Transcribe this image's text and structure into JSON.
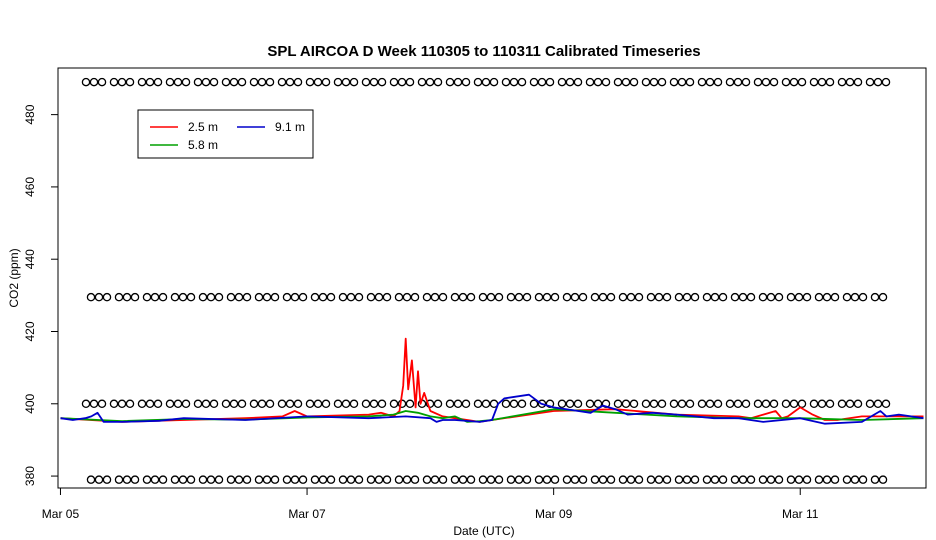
{
  "chart_data": {
    "type": "line",
    "title": "SPL AIRCOA D  Week 110305 to 110311  Calibrated Timeseries",
    "xlabel": "Date (UTC)",
    "ylabel": "CO2 (ppm)",
    "x_ticks": [
      {
        "x": 0,
        "label": "Mar 05"
      },
      {
        "x": 2,
        "label": "Mar 07"
      },
      {
        "x": 4,
        "label": "Mar 09"
      },
      {
        "x": 6,
        "label": "Mar 11"
      }
    ],
    "y_ticks": [
      380,
      400,
      420,
      440,
      460,
      480
    ],
    "xlim": [
      -0.02,
      7.02
    ],
    "ylim": [
      376.7,
      492.9
    ],
    "grid": false,
    "legend_position": "top-left",
    "legend": [
      {
        "name": "2.5 m",
        "color": "#ff0000"
      },
      {
        "name": "5.8 m",
        "color": "#00a000"
      },
      {
        "name": "9.1 m",
        "color": "#0000cc"
      }
    ],
    "series": [
      {
        "name": "9.1 m",
        "color": "#0000cc",
        "x": [
          0.0,
          0.1,
          0.2,
          0.25,
          0.3,
          0.35,
          0.5,
          0.8,
          1.0,
          1.5,
          2.0,
          2.5,
          2.8,
          3.0,
          3.05,
          3.1,
          3.2,
          3.4,
          3.5,
          3.55,
          3.6,
          3.8,
          3.9,
          4.0,
          4.2,
          4.3,
          4.4,
          4.5,
          4.6,
          4.8,
          5.0,
          5.3,
          5.5,
          5.7,
          6.0,
          6.2,
          6.5,
          6.6,
          6.65,
          6.7,
          6.8,
          6.9,
          7.0
        ],
        "values": [
          396,
          395.5,
          396,
          396.5,
          397.5,
          395,
          395,
          395.3,
          396,
          395.5,
          396.5,
          396,
          396.5,
          396,
          395,
          395.5,
          395.5,
          395,
          395.5,
          400,
          401.5,
          402.5,
          400,
          399,
          398,
          397.5,
          399.5,
          398.5,
          397,
          397.5,
          397,
          396,
          396,
          395,
          396,
          394.5,
          395,
          397,
          398,
          396.5,
          397,
          396.5,
          396
        ]
      },
      {
        "name": "2.5 m",
        "color": "#ff0000",
        "x": [
          0.0,
          0.5,
          1.0,
          1.5,
          1.8,
          1.9,
          2.0,
          2.5,
          2.6,
          2.7,
          2.75,
          2.78,
          2.8,
          2.82,
          2.85,
          2.88,
          2.9,
          2.92,
          2.95,
          3.0,
          3.1,
          3.2,
          3.3,
          3.4,
          3.5,
          4.0,
          4.5,
          5.0,
          5.5,
          5.6,
          5.7,
          5.8,
          5.85,
          5.9,
          6.0,
          6.1,
          6.2,
          6.3,
          6.5,
          7.0
        ],
        "values": [
          396,
          395,
          395.5,
          396,
          396.5,
          398,
          396.5,
          397,
          397.5,
          396.5,
          398,
          405,
          418,
          404,
          412,
          399,
          409,
          400,
          403,
          398,
          396.5,
          396,
          395.5,
          395,
          395.5,
          398,
          398.5,
          397,
          396.5,
          396,
          397,
          398,
          396,
          396.5,
          399,
          397,
          395.5,
          395.5,
          396.5,
          396.5
        ]
      },
      {
        "name": "5.8 m",
        "color": "#00a000",
        "x": [
          0.0,
          0.5,
          1.0,
          1.5,
          2.0,
          2.5,
          2.7,
          2.8,
          2.9,
          3.0,
          3.1,
          3.2,
          3.3,
          3.4,
          3.5,
          4.0,
          4.5,
          5.0,
          5.5,
          6.0,
          6.5,
          7.0
        ],
        "values": [
          396,
          395.2,
          395.8,
          395.6,
          396.2,
          396.5,
          397,
          398,
          397.5,
          396.5,
          396,
          396.5,
          395,
          395.2,
          395.5,
          398.5,
          397.5,
          396.5,
          396,
          396,
          395.5,
          396
        ]
      }
    ],
    "marker_rows": [
      {
        "y": 489,
        "symbol": "o"
      },
      {
        "y": 429.5,
        "symbol": "o"
      },
      {
        "y": 400,
        "symbol": "o"
      },
      {
        "y": 379,
        "symbol": "o"
      }
    ]
  }
}
